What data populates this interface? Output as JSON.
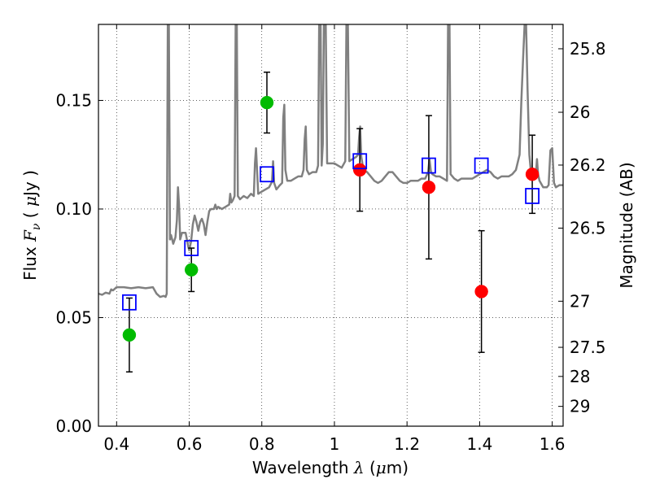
{
  "chart_data": {
    "type": "scatter",
    "title": "",
    "xlabel": {
      "prefix": "Wavelength",
      "symbol": "λ",
      "unit_open": " (",
      "unit_mu": "μ",
      "unit_rest": "m)"
    },
    "ylabel": {
      "prefix": "Flux",
      "symbol": "F",
      "subscript": "ν",
      "unit_open": " ( ",
      "unit_mu": "μ",
      "unit_rest": "Jy )"
    },
    "y2label": "Magnitude (AB)",
    "xlim": [
      0.35,
      1.63
    ],
    "ylim": [
      0.0,
      0.185
    ],
    "grid": true,
    "x_ticks": [
      {
        "v": 0.4,
        "label": "0.4"
      },
      {
        "v": 0.6,
        "label": "0.6"
      },
      {
        "v": 0.8,
        "label": "0.8"
      },
      {
        "v": 1.0,
        "label": "1"
      },
      {
        "v": 1.2,
        "label": "1.2"
      },
      {
        "v": 1.4,
        "label": "1.4"
      },
      {
        "v": 1.6,
        "label": "1.6"
      }
    ],
    "y_ticks": [
      {
        "v": 0.0,
        "label": "0.00"
      },
      {
        "v": 0.05,
        "label": "0.05"
      },
      {
        "v": 0.1,
        "label": "0.10"
      },
      {
        "v": 0.15,
        "label": "0.15"
      }
    ],
    "y2_ticks": [
      {
        "mag": 25.8,
        "label": "25.8"
      },
      {
        "mag": 26.0,
        "label": "26"
      },
      {
        "mag": 26.2,
        "label": "26.2"
      },
      {
        "mag": 26.5,
        "label": "26.5"
      },
      {
        "mag": 27.0,
        "label": "27"
      },
      {
        "mag": 27.5,
        "label": "27.5"
      },
      {
        "mag": 28.0,
        "label": "28"
      },
      {
        "mag": 29.0,
        "label": "29"
      }
    ],
    "model_spectrum": {
      "name": "model SED",
      "color": "#808080",
      "points": [
        [
          0.35,
          0.061
        ],
        [
          0.36,
          0.0605
        ],
        [
          0.37,
          0.0615
        ],
        [
          0.38,
          0.061
        ],
        [
          0.385,
          0.063
        ],
        [
          0.39,
          0.0625
        ],
        [
          0.4,
          0.064
        ],
        [
          0.42,
          0.064
        ],
        [
          0.44,
          0.0635
        ],
        [
          0.46,
          0.064
        ],
        [
          0.48,
          0.0635
        ],
        [
          0.5,
          0.064
        ],
        [
          0.51,
          0.061
        ],
        [
          0.52,
          0.0595
        ],
        [
          0.53,
          0.06
        ],
        [
          0.535,
          0.0595
        ],
        [
          0.538,
          0.061
        ],
        [
          0.541,
          0.185
        ],
        [
          0.544,
          0.185
        ],
        [
          0.547,
          0.086
        ],
        [
          0.55,
          0.088
        ],
        [
          0.556,
          0.084
        ],
        [
          0.562,
          0.087
        ],
        [
          0.566,
          0.095
        ],
        [
          0.569,
          0.11
        ],
        [
          0.572,
          0.102
        ],
        [
          0.575,
          0.086
        ],
        [
          0.58,
          0.089
        ],
        [
          0.59,
          0.089
        ],
        [
          0.597,
          0.083
        ],
        [
          0.6,
          0.081
        ],
        [
          0.605,
          0.085
        ],
        [
          0.61,
          0.093
        ],
        [
          0.615,
          0.097
        ],
        [
          0.62,
          0.094
        ],
        [
          0.625,
          0.09
        ],
        [
          0.63,
          0.094
        ],
        [
          0.635,
          0.0955
        ],
        [
          0.64,
          0.093
        ],
        [
          0.645,
          0.088
        ],
        [
          0.65,
          0.094
        ],
        [
          0.655,
          0.099
        ],
        [
          0.66,
          0.1
        ],
        [
          0.668,
          0.1
        ],
        [
          0.672,
          0.102
        ],
        [
          0.676,
          0.1
        ],
        [
          0.68,
          0.101
        ],
        [
          0.69,
          0.1
        ],
        [
          0.7,
          0.101
        ],
        [
          0.71,
          0.102
        ],
        [
          0.713,
          0.107
        ],
        [
          0.716,
          0.103
        ],
        [
          0.72,
          0.104
        ],
        [
          0.725,
          0.106
        ],
        [
          0.728,
          0.185
        ],
        [
          0.731,
          0.185
        ],
        [
          0.734,
          0.106
        ],
        [
          0.74,
          0.1045
        ],
        [
          0.75,
          0.106
        ],
        [
          0.76,
          0.105
        ],
        [
          0.77,
          0.107
        ],
        [
          0.778,
          0.106
        ],
        [
          0.781,
          0.121
        ],
        [
          0.784,
          0.128
        ],
        [
          0.787,
          0.118
        ],
        [
          0.79,
          0.107
        ],
        [
          0.8,
          0.108
        ],
        [
          0.81,
          0.109
        ],
        [
          0.82,
          0.11
        ],
        [
          0.828,
          0.1125
        ],
        [
          0.831,
          0.122
        ],
        [
          0.834,
          0.112
        ],
        [
          0.84,
          0.109
        ],
        [
          0.85,
          0.111
        ],
        [
          0.856,
          0.112
        ],
        [
          0.859,
          0.142
        ],
        [
          0.862,
          0.148
        ],
        [
          0.865,
          0.118
        ],
        [
          0.87,
          0.113
        ],
        [
          0.88,
          0.113
        ],
        [
          0.89,
          0.114
        ],
        [
          0.9,
          0.115
        ],
        [
          0.91,
          0.115
        ],
        [
          0.915,
          0.118
        ],
        [
          0.918,
          0.132
        ],
        [
          0.921,
          0.138
        ],
        [
          0.924,
          0.118
        ],
        [
          0.93,
          0.116
        ],
        [
          0.94,
          0.117
        ],
        [
          0.95,
          0.117
        ],
        [
          0.955,
          0.12
        ],
        [
          0.958,
          0.185
        ],
        [
          0.962,
          0.185
        ],
        [
          0.965,
          0.12
        ],
        [
          0.968,
          0.13
        ],
        [
          0.971,
          0.185
        ],
        [
          0.976,
          0.185
        ],
        [
          0.98,
          0.121
        ],
        [
          0.99,
          0.121
        ],
        [
          1.0,
          0.121
        ],
        [
          1.01,
          0.12
        ],
        [
          1.02,
          0.119
        ],
        [
          1.03,
          0.122
        ],
        [
          1.033,
          0.185
        ],
        [
          1.037,
          0.185
        ],
        [
          1.041,
          0.122
        ],
        [
          1.05,
          0.123
        ],
        [
          1.06,
          0.124
        ],
        [
          1.065,
          0.125
        ],
        [
          1.068,
          0.133
        ],
        [
          1.071,
          0.138
        ],
        [
          1.074,
          0.124
        ],
        [
          1.08,
          0.118
        ],
        [
          1.09,
          0.117
        ],
        [
          1.1,
          0.115
        ],
        [
          1.11,
          0.113
        ],
        [
          1.12,
          0.112
        ],
        [
          1.13,
          0.113
        ],
        [
          1.14,
          0.115
        ],
        [
          1.15,
          0.117
        ],
        [
          1.16,
          0.117
        ],
        [
          1.17,
          0.115
        ],
        [
          1.18,
          0.113
        ],
        [
          1.19,
          0.112
        ],
        [
          1.2,
          0.112
        ],
        [
          1.21,
          0.113
        ],
        [
          1.22,
          0.113
        ],
        [
          1.23,
          0.113
        ],
        [
          1.24,
          0.114
        ],
        [
          1.25,
          0.114
        ],
        [
          1.258,
          0.117
        ],
        [
          1.262,
          0.123
        ],
        [
          1.266,
          0.117
        ],
        [
          1.27,
          0.116
        ],
        [
          1.28,
          0.115
        ],
        [
          1.29,
          0.115
        ],
        [
          1.3,
          0.114
        ],
        [
          1.31,
          0.113
        ],
        [
          1.313,
          0.185
        ],
        [
          1.317,
          0.185
        ],
        [
          1.32,
          0.116
        ],
        [
          1.33,
          0.114
        ],
        [
          1.34,
          0.113
        ],
        [
          1.35,
          0.114
        ],
        [
          1.36,
          0.114
        ],
        [
          1.37,
          0.114
        ],
        [
          1.38,
          0.114
        ],
        [
          1.39,
          0.115
        ],
        [
          1.4,
          0.116
        ],
        [
          1.41,
          0.117
        ],
        [
          1.42,
          0.118
        ],
        [
          1.43,
          0.117
        ],
        [
          1.44,
          0.115
        ],
        [
          1.45,
          0.114
        ],
        [
          1.46,
          0.115
        ],
        [
          1.47,
          0.115
        ],
        [
          1.48,
          0.115
        ],
        [
          1.49,
          0.116
        ],
        [
          1.5,
          0.118
        ],
        [
          1.51,
          0.125
        ],
        [
          1.515,
          0.15
        ],
        [
          1.52,
          0.17
        ],
        [
          1.524,
          0.185
        ],
        [
          1.528,
          0.185
        ],
        [
          1.532,
          0.155
        ],
        [
          1.537,
          0.125
        ],
        [
          1.542,
          0.116
        ],
        [
          1.55,
          0.114
        ],
        [
          1.555,
          0.116
        ],
        [
          1.558,
          0.123
        ],
        [
          1.561,
          0.116
        ],
        [
          1.565,
          0.113
        ],
        [
          1.575,
          0.11
        ],
        [
          1.585,
          0.11
        ],
        [
          1.59,
          0.111
        ],
        [
          1.595,
          0.127
        ],
        [
          1.6,
          0.128
        ],
        [
          1.605,
          0.112
        ],
        [
          1.61,
          0.11
        ],
        [
          1.62,
          0.111
        ],
        [
          1.63,
          0.111
        ]
      ]
    },
    "series": [
      {
        "name": "green circles",
        "marker": "circle",
        "color": "#00bb00",
        "points": [
          {
            "x": 0.435,
            "y": 0.042,
            "err": 0.017
          },
          {
            "x": 0.606,
            "y": 0.072,
            "err": 0.01
          },
          {
            "x": 0.814,
            "y": 0.149,
            "err": 0.014
          }
        ]
      },
      {
        "name": "red circles",
        "marker": "circle",
        "color": "#ff0000",
        "points": [
          {
            "x": 1.07,
            "y": 0.118,
            "err": 0.019
          },
          {
            "x": 1.26,
            "y": 0.11,
            "err": 0.033
          },
          {
            "x": 1.405,
            "y": 0.062,
            "err": 0.028
          },
          {
            "x": 1.545,
            "y": 0.116,
            "err": 0.018
          }
        ]
      },
      {
        "name": "blue open squares",
        "marker": "square-open",
        "color": "#0000ff",
        "points": [
          {
            "x": 0.435,
            "y": 0.057
          },
          {
            "x": 0.606,
            "y": 0.082
          },
          {
            "x": 0.814,
            "y": 0.116
          },
          {
            "x": 1.07,
            "y": 0.122
          },
          {
            "x": 1.26,
            "y": 0.12
          },
          {
            "x": 1.405,
            "y": 0.12
          },
          {
            "x": 1.545,
            "y": 0.106
          }
        ]
      }
    ]
  }
}
